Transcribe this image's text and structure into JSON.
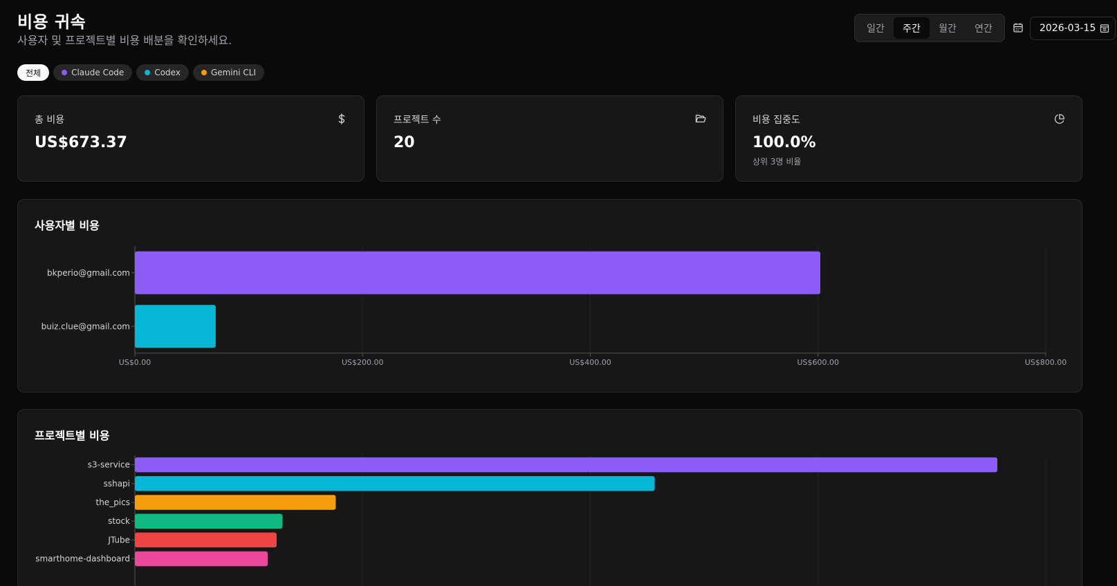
{
  "header": {
    "title": "비용 귀속",
    "subtitle": "사용자 및 프로젝트별 비용 배분을 확인하세요."
  },
  "period_toggle": {
    "options": [
      "일간",
      "주간",
      "월간",
      "연간"
    ],
    "selected": "주간"
  },
  "date_picker": {
    "value": "2026-03-15"
  },
  "filters": {
    "chips": [
      {
        "label": "전체",
        "active": true,
        "color": ""
      },
      {
        "label": "Claude Code",
        "active": false,
        "color": "#8b5cf6"
      },
      {
        "label": "Codex",
        "active": false,
        "color": "#06b6d4"
      },
      {
        "label": "Gemini CLI",
        "active": false,
        "color": "#f59e0b"
      }
    ]
  },
  "stats": {
    "total_cost": {
      "label": "총 비용",
      "value": "US$673.37",
      "icon": "dollar-icon"
    },
    "project_count": {
      "label": "프로젝트 수",
      "value": "20",
      "icon": "folder-open-icon"
    },
    "concentration": {
      "label": "비용 집중도",
      "value": "100.0%",
      "sub": "상위 3명 비율",
      "icon": "pie-chart-icon"
    }
  },
  "user_chart": {
    "title": "사용자별 비용"
  },
  "project_chart": {
    "title": "프로젝트별 비용"
  },
  "colors": {
    "purple": "#8b5cf6",
    "cyan": "#06b6d4",
    "amber": "#f59e0b",
    "green": "#10b981",
    "red": "#ef4444",
    "pink": "#ec4899"
  },
  "chart_data": [
    {
      "type": "bar",
      "orientation": "horizontal",
      "title": "사용자별 비용",
      "categories": [
        "bkperio@gmail.com",
        "buiz.clue@gmail.com"
      ],
      "values": [
        602,
        71
      ],
      "colors": [
        "#8b5cf6",
        "#06b6d4"
      ],
      "xlim": [
        0,
        800
      ],
      "xticks": [
        0,
        200,
        400,
        600,
        800
      ],
      "xtick_labels": [
        "US$0.00",
        "US$200.00",
        "US$400.00",
        "US$600.00",
        "US$800.00"
      ]
    },
    {
      "type": "bar",
      "orientation": "horizontal",
      "title": "프로젝트별 비용",
      "categories": [
        "s3-service",
        "sshapi",
        "the_pics",
        "stock",
        "JTube",
        "smarthome-dashboard"
      ],
      "values": [
        292,
        176,
        68,
        50,
        48,
        45
      ],
      "colors": [
        "#8b5cf6",
        "#06b6d4",
        "#f59e0b",
        "#10b981",
        "#ef4444",
        "#ec4899"
      ]
    }
  ]
}
